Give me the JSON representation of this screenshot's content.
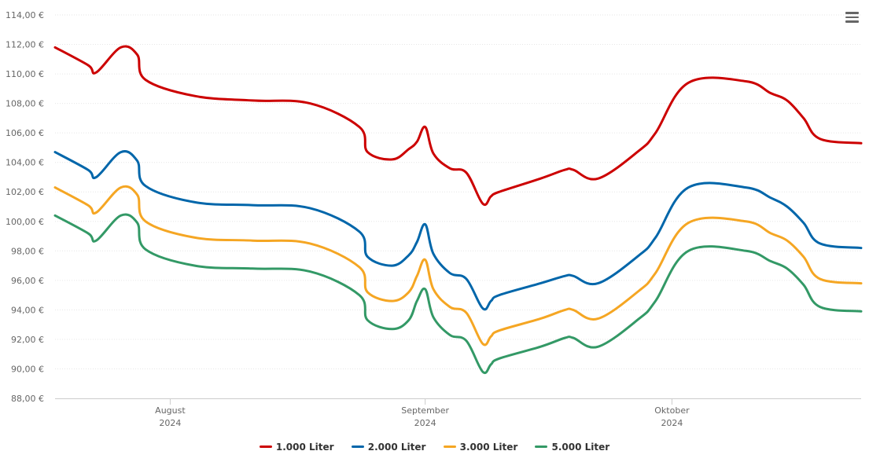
{
  "menu": {
    "icon": "hamburger-menu-icon"
  },
  "chart_data": {
    "type": "line",
    "title": "",
    "xlabel": "",
    "ylabel": "",
    "ylim": [
      88,
      114
    ],
    "yticks": [
      "88,00 €",
      "90,00 €",
      "92,00 €",
      "94,00 €",
      "96,00 €",
      "98,00 €",
      "100,00 €",
      "102,00 €",
      "104,00 €",
      "106,00 €",
      "108,00 €",
      "110,00 €",
      "112,00 €",
      "114,00 €"
    ],
    "xlim": [
      "2024-07-18",
      "2024-10-24"
    ],
    "xticks": [
      {
        "date": "2024-08-01",
        "month": "August",
        "year": "2024"
      },
      {
        "date": "2024-09-01",
        "month": "September",
        "year": "2024"
      },
      {
        "date": "2024-10-01",
        "month": "Oktober",
        "year": "2024"
      }
    ],
    "grid": true,
    "legend": "bottom-center",
    "x": [
      "2024-07-18",
      "2024-07-22",
      "2024-07-23",
      "2024-07-26",
      "2024-07-28",
      "2024-07-29",
      "2024-08-04",
      "2024-08-11",
      "2024-08-18",
      "2024-08-24",
      "2024-08-25",
      "2024-08-28",
      "2024-08-30",
      "2024-08-31",
      "2024-09-01",
      "2024-09-02",
      "2024-09-04",
      "2024-09-06",
      "2024-09-08",
      "2024-09-09",
      "2024-09-10",
      "2024-09-15",
      "2024-09-18",
      "2024-09-19",
      "2024-09-22",
      "2024-09-27",
      "2024-09-29",
      "2024-10-03",
      "2024-10-10",
      "2024-10-13",
      "2024-10-15",
      "2024-10-17",
      "2024-10-19",
      "2024-10-24"
    ],
    "series": [
      {
        "name": "1.000 Liter",
        "color": "#cc0000",
        "values": [
          111.8,
          110.6,
          110.1,
          111.8,
          111.3,
          109.6,
          108.5,
          108.2,
          108.0,
          106.4,
          104.7,
          104.2,
          104.9,
          105.4,
          106.4,
          104.6,
          103.6,
          103.3,
          101.2,
          101.7,
          102.0,
          102.9,
          103.5,
          103.5,
          102.9,
          104.8,
          106.0,
          109.4,
          109.5,
          108.7,
          108.2,
          107.0,
          105.6,
          105.3
        ]
      },
      {
        "name": "2.000 Liter",
        "color": "#0066aa",
        "values": [
          104.7,
          103.5,
          103.0,
          104.7,
          104.1,
          102.4,
          101.3,
          101.1,
          100.9,
          99.3,
          97.6,
          97.0,
          97.7,
          98.6,
          99.8,
          97.8,
          96.5,
          96.1,
          94.1,
          94.6,
          95.0,
          95.8,
          96.3,
          96.3,
          95.8,
          97.7,
          98.9,
          102.3,
          102.3,
          101.6,
          101.0,
          99.9,
          98.5,
          98.2
        ]
      },
      {
        "name": "3.000 Liter",
        "color": "#f5a623",
        "values": [
          102.3,
          101.1,
          100.6,
          102.3,
          101.8,
          100.0,
          98.9,
          98.7,
          98.5,
          96.9,
          95.2,
          94.6,
          95.2,
          96.3,
          97.4,
          95.4,
          94.2,
          93.8,
          91.7,
          92.2,
          92.6,
          93.4,
          94.0,
          94.0,
          93.4,
          95.3,
          96.5,
          99.9,
          100.0,
          99.2,
          98.7,
          97.6,
          96.1,
          95.8
        ]
      },
      {
        "name": "5.000 Liter",
        "color": "#339966",
        "values": [
          100.4,
          99.2,
          98.7,
          100.4,
          99.9,
          98.1,
          97.0,
          96.8,
          96.6,
          95.0,
          93.3,
          92.7,
          93.3,
          94.6,
          95.4,
          93.5,
          92.3,
          91.9,
          89.8,
          90.3,
          90.7,
          91.5,
          92.1,
          92.1,
          91.5,
          93.4,
          94.6,
          98.0,
          98.0,
          97.3,
          96.8,
          95.7,
          94.2,
          93.9
        ]
      }
    ]
  }
}
